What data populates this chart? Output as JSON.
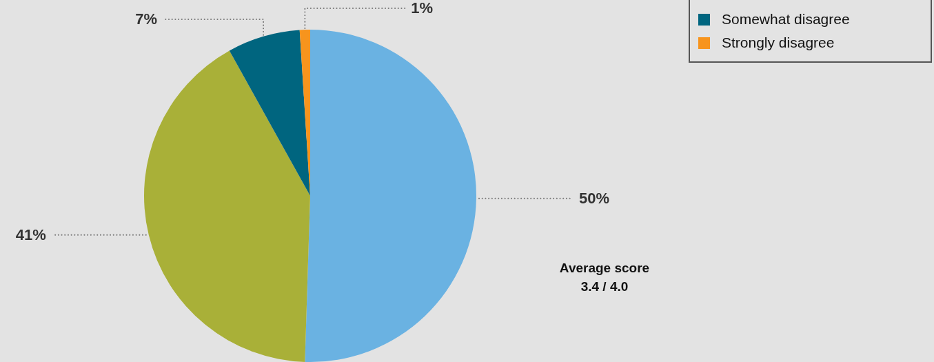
{
  "chart_data": {
    "type": "pie",
    "categories": [
      null,
      null,
      "Somewhat disagree",
      "Strongly disagree"
    ],
    "values": [
      50,
      41,
      7,
      1
    ],
    "colors": [
      "#6ab2e2",
      "#a9b038",
      "#00657f",
      "#f7941d"
    ],
    "value_labels": [
      "50%",
      "41%",
      "7%",
      "1%"
    ],
    "legend": "top right",
    "annotations": [
      "Average score",
      "3.4 / 4.0"
    ]
  }
}
